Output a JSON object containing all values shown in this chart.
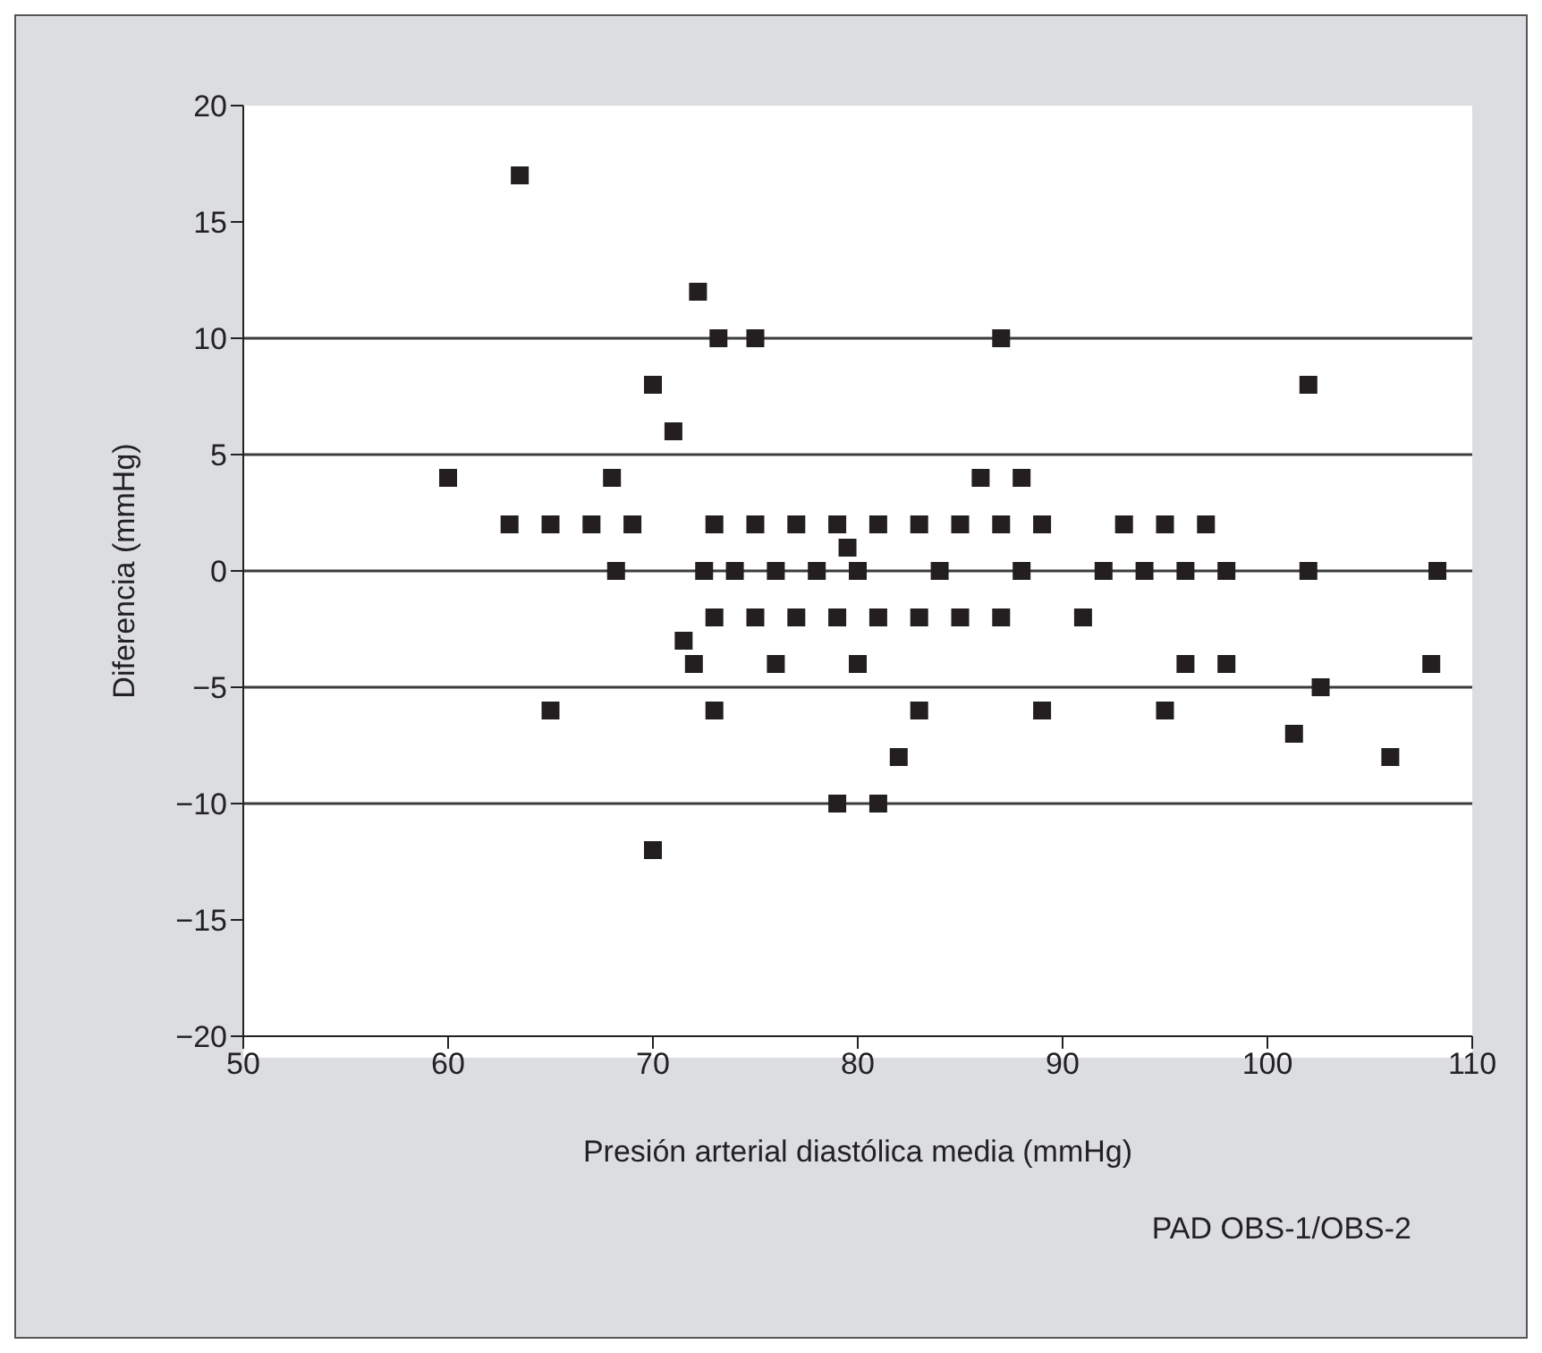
{
  "chart_data": {
    "type": "scatter",
    "xlabel": "Presión arterial diastólica media (mmHg)",
    "ylabel": "Diferencia (mmHg)",
    "annotations": [
      "PAD OBS-1/OBS-2"
    ],
    "x": [
      60,
      63.5,
      63,
      65,
      65,
      67,
      68,
      68.2,
      69,
      70,
      70,
      71,
      71.5,
      72,
      72.2,
      72.5,
      73,
      73.2,
      73,
      73,
      74,
      75,
      75,
      75,
      76,
      76,
      77,
      77,
      78,
      79,
      79,
      79,
      79.5,
      80,
      80,
      81,
      81,
      81,
      82,
      83,
      83,
      83,
      84,
      85,
      85,
      86,
      87,
      87,
      87,
      88,
      88,
      89,
      89,
      91,
      92,
      93,
      94,
      95,
      95,
      96,
      96,
      97,
      98,
      98,
      101.3,
      102,
      102,
      102.6,
      106,
      108,
      108.3
    ],
    "values": [
      4,
      17,
      2,
      2,
      -6,
      2,
      4,
      0,
      2,
      8,
      -12,
      6,
      -3,
      -4,
      12,
      0,
      2,
      10,
      -2,
      -6,
      0,
      10,
      2,
      -2,
      0,
      -4,
      2,
      -2,
      0,
      2,
      -2,
      -10,
      1,
      0,
      -4,
      2,
      -2,
      -10,
      -8,
      2,
      -2,
      -6,
      0,
      2,
      -2,
      4,
      10,
      2,
      -2,
      4,
      0,
      2,
      -6,
      -2,
      0,
      2,
      0,
      2,
      -6,
      0,
      -4,
      2,
      0,
      -4,
      -7,
      8,
      0,
      -5,
      -8,
      -4,
      0
    ],
    "color": "#231f20",
    "marker": "square",
    "xlim": [
      50,
      110
    ],
    "xticks": [
      50,
      60,
      70,
      80,
      90,
      100,
      110
    ],
    "ylim": [
      -20,
      20
    ],
    "yticks": [
      -20,
      -15,
      -10,
      -5,
      0,
      5,
      10,
      15,
      20
    ],
    "grid": false,
    "ref_lines": [
      {
        "axis": "y",
        "value": 10,
        "color": "#3c3c3c"
      },
      {
        "axis": "y",
        "value": 5,
        "color": "#3c3c3c"
      },
      {
        "axis": "y",
        "value": 0,
        "color": "#3c3c3c"
      },
      {
        "axis": "y",
        "value": -5,
        "color": "#3c3c3c"
      },
      {
        "axis": "y",
        "value": -10,
        "color": "#3c3c3c"
      }
    ]
  }
}
